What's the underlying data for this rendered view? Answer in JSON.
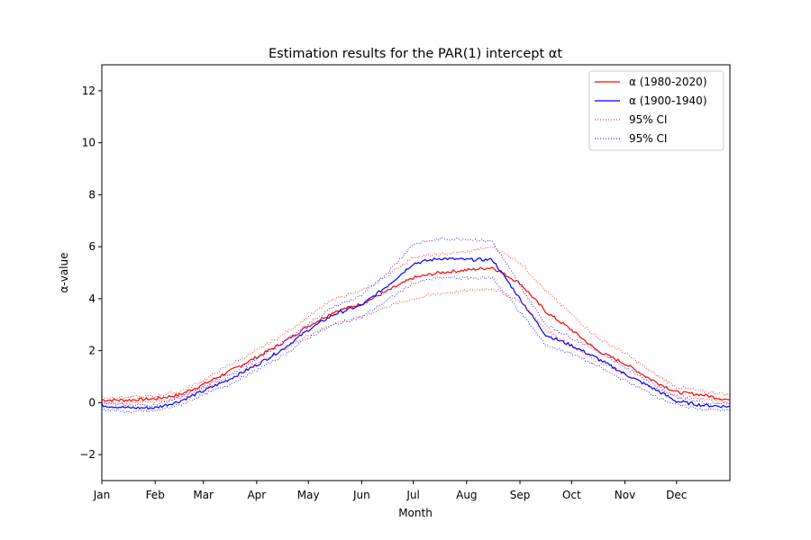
{
  "chart_data": {
    "type": "line",
    "title": "Estimation results for the PAR(1) intercept αt",
    "xlabel": "Month",
    "ylabel": "α-value",
    "xlim": [
      1,
      366
    ],
    "ylim": [
      -3,
      13
    ],
    "y_ticks": [
      -2,
      0,
      2,
      4,
      6,
      8,
      10,
      12
    ],
    "y_tick_labels": [
      "−2",
      "0",
      "2",
      "4",
      "6",
      "8",
      "10",
      "12"
    ],
    "x_ticks": [
      1,
      32,
      60,
      91,
      121,
      152,
      182,
      213,
      244,
      274,
      305,
      335
    ],
    "x_tick_labels": [
      "Jan",
      "Feb",
      "Mar",
      "Apr",
      "May",
      "Jun",
      "Jul",
      "Aug",
      "Sep",
      "Oct",
      "Nov",
      "Dec"
    ],
    "legend_position": "upper-right",
    "x": [
      1,
      16,
      32,
      46,
      60,
      75,
      91,
      106,
      121,
      136,
      152,
      167,
      182,
      197,
      213,
      228,
      244,
      259,
      274,
      289,
      305,
      320,
      335,
      350,
      366
    ],
    "series": [
      {
        "name": "α (1980-2020)",
        "color": "#ff0000",
        "style": "solid",
        "values": [
          0.1,
          0.1,
          0.15,
          0.3,
          0.7,
          1.2,
          1.75,
          2.3,
          2.95,
          3.5,
          3.8,
          4.3,
          4.8,
          5.0,
          5.1,
          5.2,
          4.6,
          3.5,
          2.8,
          2.0,
          1.5,
          0.9,
          0.4,
          0.3,
          0.1
        ]
      },
      {
        "name": "α (1900-1940)",
        "color": "#0000ff",
        "style": "solid",
        "values": [
          -0.1,
          -0.2,
          -0.2,
          0.05,
          0.45,
          0.9,
          1.45,
          2.05,
          2.8,
          3.4,
          3.75,
          4.5,
          5.35,
          5.55,
          5.5,
          5.5,
          4.0,
          2.6,
          2.2,
          1.7,
          1.1,
          0.6,
          0.05,
          -0.1,
          -0.15
        ]
      },
      {
        "name": "95% CI",
        "color": "#ff0000",
        "style": "dotted",
        "values": [
          0.2,
          0.2,
          0.25,
          0.42,
          0.85,
          1.45,
          2.0,
          2.6,
          3.3,
          4.0,
          4.3,
          4.9,
          5.6,
          5.7,
          5.8,
          6.0,
          5.4,
          4.3,
          3.4,
          2.5,
          1.9,
          1.2,
          0.6,
          0.45,
          0.3
        ]
      },
      {
        "name": "",
        "color": "#ff0000",
        "style": "dotted",
        "values": [
          0.0,
          0.0,
          0.05,
          0.18,
          0.55,
          1.0,
          1.5,
          2.0,
          2.6,
          3.05,
          3.3,
          3.7,
          4.0,
          4.2,
          4.3,
          4.4,
          3.9,
          2.8,
          2.2,
          1.6,
          1.1,
          0.6,
          0.25,
          0.15,
          0.0
        ]
      },
      {
        "name": "95% CI",
        "color": "#0000ff",
        "style": "dotted",
        "values": [
          0.0,
          -0.1,
          -0.1,
          0.2,
          0.6,
          1.1,
          1.65,
          2.3,
          3.05,
          3.7,
          4.1,
          5.0,
          6.1,
          6.3,
          6.3,
          6.2,
          4.5,
          3.0,
          2.5,
          2.0,
          1.35,
          0.8,
          0.2,
          0.0,
          -0.05
        ]
      },
      {
        "name": "",
        "color": "#0000ff",
        "style": "dotted",
        "values": [
          -0.25,
          -0.35,
          -0.32,
          -0.1,
          0.3,
          0.7,
          1.25,
          1.8,
          2.5,
          3.0,
          3.3,
          3.95,
          4.6,
          4.8,
          4.8,
          4.8,
          3.5,
          2.2,
          1.9,
          1.4,
          0.85,
          0.35,
          -0.1,
          -0.25,
          -0.3
        ]
      }
    ]
  }
}
